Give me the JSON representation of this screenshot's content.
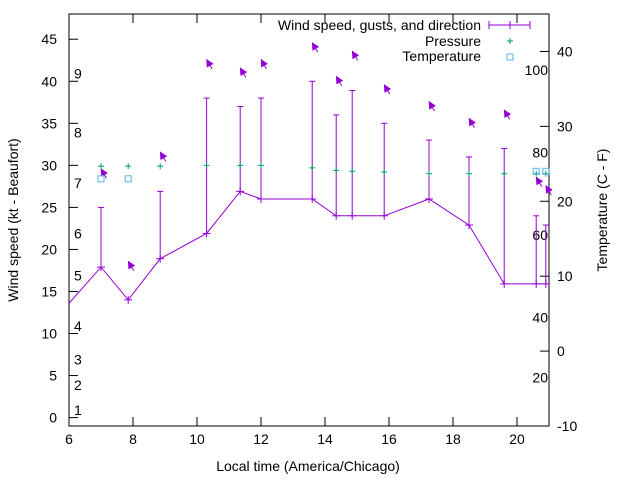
{
  "chart_data": {
    "type": "line",
    "xlabel": "Local time (America/Chicago)",
    "ylabel_left": "Wind speed (kt - Beaufort)",
    "ylabel_right": "Temperature (C - F)",
    "xlim": [
      6,
      21
    ],
    "ylim_left": [
      -1,
      48
    ],
    "ylim_right": [
      -10,
      45
    ],
    "x_ticks": [
      6,
      8,
      10,
      12,
      14,
      16,
      18,
      20
    ],
    "y_left_ticks": [
      0,
      5,
      10,
      15,
      20,
      25,
      30,
      35,
      40,
      45
    ],
    "y_right_ticks": [
      -10,
      0,
      10,
      20,
      30,
      40
    ],
    "beaufort_labels": [
      {
        "value": 0.9,
        "label": "1"
      },
      {
        "value": 3.9,
        "label": "2"
      },
      {
        "value": 6.9,
        "label": "3"
      },
      {
        "value": 10.9,
        "label": "4"
      },
      {
        "value": 16.9,
        "label": "5"
      },
      {
        "value": 21.9,
        "label": "6"
      },
      {
        "value": 27.9,
        "label": "7"
      },
      {
        "value": 33.9,
        "label": "8"
      },
      {
        "value": 40.9,
        "label": "9"
      }
    ],
    "fahrenheit_labels": [
      {
        "value": -3.5,
        "label": "20"
      },
      {
        "value": 4.5,
        "label": "40"
      },
      {
        "value": 15.5,
        "label": "60"
      },
      {
        "value": 26.5,
        "label": "80"
      },
      {
        "value": 37.5,
        "label": "100"
      }
    ],
    "legend": {
      "placement": "top-right",
      "entries": [
        "Wind speed, gusts, and direction",
        "Pressure",
        "Temperature"
      ]
    },
    "colors": {
      "wind": "#9400d3",
      "pressure": "#009e73",
      "temperature": "#56b4e9",
      "axis": "#000000"
    },
    "wind_series": {
      "name": "Wind speed, gusts, and direction",
      "x": [
        6.0,
        7.0,
        7.85,
        8.85,
        10.3,
        11.35,
        12.0,
        13.6,
        14.35,
        14.85,
        15.85,
        17.25,
        18.5,
        19.6,
        20.6,
        20.9
      ],
      "speed": [
        13.6,
        17.9,
        14.0,
        18.9,
        21.9,
        26.9,
        26.0,
        26.0,
        24.0,
        24.0,
        24.0,
        26.0,
        22.9,
        15.9,
        15.9,
        15.9
      ],
      "gust": [
        null,
        25.0,
        null,
        26.9,
        38.0,
        37.0,
        38.0,
        40.0,
        36.0,
        38.9,
        35.0,
        33.0,
        31.0,
        32.0,
        24.0,
        22.9
      ]
    },
    "direction_arrows": {
      "x": [
        7.0,
        7.85,
        8.85,
        10.3,
        11.35,
        12.0,
        13.6,
        14.35,
        14.85,
        15.85,
        17.25,
        18.5,
        19.6,
        20.6,
        20.9
      ],
      "y": [
        29.6,
        18.6,
        31.6,
        42.6,
        41.6,
        42.6,
        44.6,
        40.6,
        43.6,
        39.6,
        37.6,
        35.6,
        36.6,
        28.6,
        27.6
      ]
    },
    "pressure_series": {
      "name": "Pressure",
      "x": [
        7.0,
        7.85,
        8.85,
        10.3,
        11.35,
        12.0,
        13.6,
        14.35,
        14.85,
        15.85,
        17.25,
        18.5,
        19.6,
        20.6,
        20.9
      ],
      "y": [
        29.9,
        29.9,
        29.9,
        30.0,
        30.0,
        30.0,
        29.7,
        29.4,
        29.3,
        29.2,
        29.0,
        29.0,
        29.0,
        29.0,
        29.0
      ]
    },
    "temperature_series": {
      "name": "Temperature",
      "x": [
        7.0,
        7.85,
        20.6,
        20.9
      ],
      "y": [
        23.0,
        23.0,
        24.0,
        24.0
      ]
    }
  }
}
